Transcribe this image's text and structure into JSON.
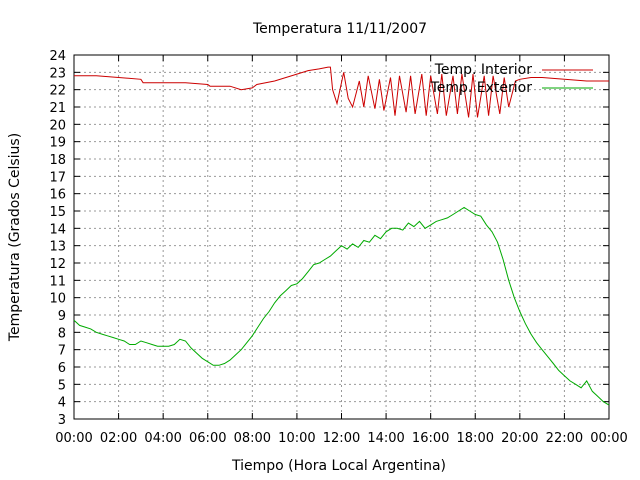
{
  "chart_data": {
    "type": "line",
    "title": "Temperatura 11/11/2007",
    "xlabel": "Tiempo (Hora Local Argentina)",
    "ylabel": "Temperatura (Grados Celsius)",
    "xlim": [
      0,
      24
    ],
    "ylim": [
      3,
      24
    ],
    "grid": true,
    "legend_position": "top-right",
    "x_ticks": [
      "00:00",
      "02:00",
      "04:00",
      "06:00",
      "08:00",
      "10:00",
      "12:00",
      "14:00",
      "16:00",
      "18:00",
      "20:00",
      "22:00",
      "00:00"
    ],
    "y_ticks": [
      3,
      4,
      5,
      6,
      7,
      8,
      9,
      10,
      11,
      12,
      13,
      14,
      15,
      16,
      17,
      18,
      19,
      20,
      21,
      22,
      23,
      24
    ],
    "series": [
      {
        "name": "Temp. Interior",
        "color": "#cc0000",
        "x": [
          0,
          1,
          2,
          3,
          3.1,
          4,
          5,
          6,
          6.1,
          7,
          7.5,
          8,
          8.2,
          9,
          10,
          10.5,
          11,
          11.4,
          11.5,
          11.6,
          11.8,
          12.1,
          12.3,
          12.5,
          12.8,
          13.0,
          13.2,
          13.5,
          13.7,
          13.9,
          14.2,
          14.4,
          14.6,
          14.9,
          15.1,
          15.3,
          15.6,
          15.8,
          16.0,
          16.3,
          16.5,
          16.7,
          17.0,
          17.2,
          17.4,
          17.7,
          17.9,
          18.1,
          18.4,
          18.6,
          18.8,
          19.1,
          19.3,
          19.5,
          19.8,
          20.0,
          20.5,
          21,
          22,
          23,
          24
        ],
        "y": [
          22.8,
          22.8,
          22.7,
          22.6,
          22.4,
          22.4,
          22.4,
          22.3,
          22.2,
          22.2,
          22.0,
          22.1,
          22.3,
          22.5,
          22.9,
          23.1,
          23.2,
          23.3,
          23.3,
          22.0,
          21.2,
          23.0,
          21.5,
          21.0,
          22.5,
          21.0,
          22.8,
          20.9,
          22.6,
          20.8,
          22.7,
          20.5,
          22.8,
          20.7,
          22.8,
          20.6,
          22.9,
          20.5,
          22.8,
          20.6,
          22.9,
          20.5,
          22.8,
          20.6,
          22.9,
          20.4,
          22.9,
          20.4,
          22.8,
          20.5,
          22.8,
          20.6,
          22.7,
          21.0,
          22.5,
          22.6,
          22.7,
          22.7,
          22.6,
          22.5,
          22.5
        ]
      },
      {
        "name": "Temp. Exterior",
        "color": "#00aa00",
        "x": [
          0,
          0.25,
          0.5,
          0.75,
          1,
          1.25,
          1.5,
          1.75,
          2,
          2.25,
          2.5,
          2.75,
          3,
          3.25,
          3.5,
          3.75,
          4,
          4.25,
          4.5,
          4.75,
          5,
          5.25,
          5.5,
          5.75,
          6,
          6.25,
          6.5,
          6.75,
          7,
          7.25,
          7.5,
          7.75,
          8,
          8.25,
          8.5,
          8.75,
          9,
          9.25,
          9.5,
          9.75,
          10,
          10.25,
          10.5,
          10.75,
          11,
          11.25,
          11.5,
          11.75,
          12,
          12.25,
          12.5,
          12.75,
          13,
          13.25,
          13.5,
          13.75,
          14,
          14.25,
          14.5,
          14.75,
          15,
          15.25,
          15.5,
          15.75,
          16,
          16.25,
          16.5,
          16.75,
          17,
          17.25,
          17.5,
          17.75,
          18,
          18.25,
          18.5,
          18.75,
          19,
          19.25,
          19.5,
          19.75,
          20,
          20.25,
          20.5,
          20.75,
          21,
          21.25,
          21.5,
          21.75,
          22,
          22.25,
          22.5,
          22.75,
          23,
          23.25,
          23.5,
          23.75,
          24
        ],
        "y": [
          8.7,
          8.4,
          8.3,
          8.2,
          8.0,
          7.9,
          7.8,
          7.7,
          7.6,
          7.5,
          7.3,
          7.3,
          7.5,
          7.4,
          7.3,
          7.2,
          7.2,
          7.2,
          7.3,
          7.6,
          7.5,
          7.1,
          6.8,
          6.5,
          6.3,
          6.1,
          6.1,
          6.2,
          6.4,
          6.7,
          7.0,
          7.4,
          7.8,
          8.3,
          8.8,
          9.2,
          9.7,
          10.1,
          10.4,
          10.7,
          10.8,
          11.1,
          11.5,
          11.9,
          12.0,
          12.2,
          12.4,
          12.7,
          13.0,
          12.8,
          13.1,
          12.9,
          13.3,
          13.2,
          13.6,
          13.4,
          13.8,
          14.0,
          14.0,
          13.9,
          14.3,
          14.1,
          14.4,
          14.0,
          14.2,
          14.4,
          14.5,
          14.6,
          14.8,
          15.0,
          15.2,
          15.0,
          14.8,
          14.7,
          14.2,
          13.8,
          13.2,
          12.2,
          11.0,
          10.0,
          9.2,
          8.5,
          7.9,
          7.4,
          7.0,
          6.6,
          6.2,
          5.8,
          5.5,
          5.2,
          5.0,
          4.8,
          5.2,
          4.6,
          4.3,
          4.0,
          3.8
        ]
      }
    ]
  }
}
